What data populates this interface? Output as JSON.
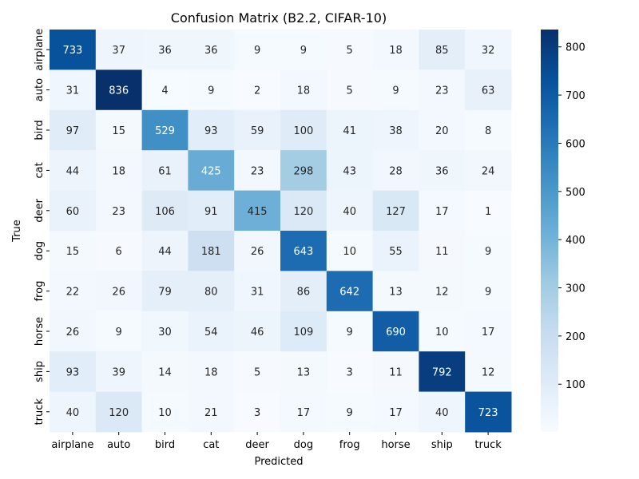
{
  "chart_data": {
    "type": "heatmap",
    "title": "Confusion Matrix (B2.2, CIFAR-10)",
    "xlabel": "Predicted",
    "ylabel": "True",
    "x_categories": [
      "airplane",
      "auto",
      "bird",
      "cat",
      "deer",
      "dog",
      "frog",
      "horse",
      "ship",
      "truck"
    ],
    "y_categories": [
      "airplane",
      "auto",
      "bird",
      "cat",
      "deer",
      "dog",
      "frog",
      "horse",
      "ship",
      "truck"
    ],
    "values": [
      [
        733,
        37,
        36,
        36,
        9,
        9,
        5,
        18,
        85,
        32
      ],
      [
        31,
        836,
        4,
        9,
        2,
        18,
        5,
        9,
        23,
        63
      ],
      [
        97,
        15,
        529,
        93,
        59,
        100,
        41,
        38,
        20,
        8
      ],
      [
        44,
        18,
        61,
        425,
        23,
        298,
        43,
        28,
        36,
        24
      ],
      [
        60,
        23,
        106,
        91,
        415,
        120,
        40,
        127,
        17,
        1
      ],
      [
        15,
        6,
        44,
        181,
        26,
        643,
        10,
        55,
        11,
        9
      ],
      [
        22,
        26,
        79,
        80,
        31,
        86,
        642,
        13,
        12,
        9
      ],
      [
        26,
        9,
        30,
        54,
        46,
        109,
        9,
        690,
        10,
        17
      ],
      [
        93,
        39,
        14,
        18,
        5,
        13,
        3,
        11,
        792,
        12
      ],
      [
        40,
        120,
        10,
        21,
        3,
        17,
        9,
        17,
        40,
        723
      ]
    ],
    "colormap": "Blues",
    "vmin": 1,
    "vmax": 836,
    "colorbar_ticks": [
      100,
      200,
      300,
      400,
      500,
      600,
      700,
      800
    ]
  }
}
